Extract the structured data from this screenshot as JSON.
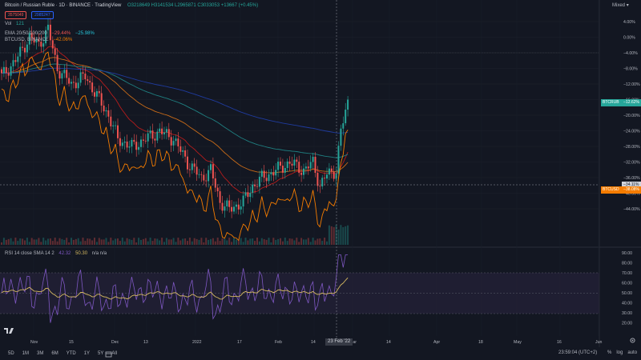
{
  "header": {
    "symbol_title": "Bitcoin / Russian Ruble · 1D · BINANCE · TradingView",
    "ohlc": "O3218649 H3141534 L2965871 C3033053 +13667 (+0.45%)",
    "sell_price": "3575049",
    "buy_price": "2985247",
    "ema_label": "EMA 20/50/100/200",
    "ema_value_1": "−29.44%",
    "ema_value_2": "−25.98%",
    "compare_label": "BTCUSD, BINANCE",
    "compare_value": "−42.06%",
    "vol_label": "Vol",
    "vol_value": "121",
    "scale_mode": "Mixed"
  },
  "rsi": {
    "label": "RSI 14 close SMA 14 2",
    "value_1": "42.32",
    "value_2": "50.30",
    "extra": "n/a n/a"
  },
  "badges": {
    "btcrub_label": "BTCRUB",
    "btcrub_value": "−12.62%",
    "crosshair_value": "−34.11%",
    "btcusd_label": "BTCUSD",
    "btcusd_value": "−38.08%"
  },
  "price_axis": [
    "4.00%",
    "0.00%",
    "−4.00%",
    "−8.00%",
    "−12.00%",
    "−16.00%",
    "−20.00%",
    "−24.00%",
    "−28.00%",
    "−32.00%",
    "−36.00%",
    "−40.00%",
    "−44.00%"
  ],
  "rsi_axis": [
    "90.00",
    "80.00",
    "70.00",
    "60.00",
    "50.00",
    "40.00",
    "30.00",
    "20.00"
  ],
  "time_axis": [
    "Nov",
    "15",
    "Dec",
    "13",
    "2022",
    "17",
    "Feb",
    "14",
    "Mar",
    "14",
    "Apr",
    "18",
    "May",
    "16",
    "Jun"
  ],
  "crosshair_date": "23 Feb '22",
  "timeframes": [
    "5D",
    "1M",
    "3M",
    "6M",
    "YTD",
    "1Y",
    "5Y",
    "All"
  ],
  "clock": "23:59:04 (UTC+2)",
  "bottom_toggles": [
    "%",
    "log",
    "auto"
  ],
  "icons": [
    "tradingview-logo-icon",
    "calendar-range-icon",
    "settings-gear-icon"
  ],
  "colors": {
    "background": "#131722",
    "candle_up": "#26a69a",
    "candle_down": "#ef5350",
    "ema_red": "#b71c1c",
    "ema_orange": "#c76a18",
    "ema_teal": "#1f7f80",
    "ema_blue": "#1f3b9e",
    "btcusd_line": "#f57c00",
    "rsi_line": "#7e57c2",
    "rsi_sma": "#d4b860",
    "rsi_band": "#2a2540"
  }
}
